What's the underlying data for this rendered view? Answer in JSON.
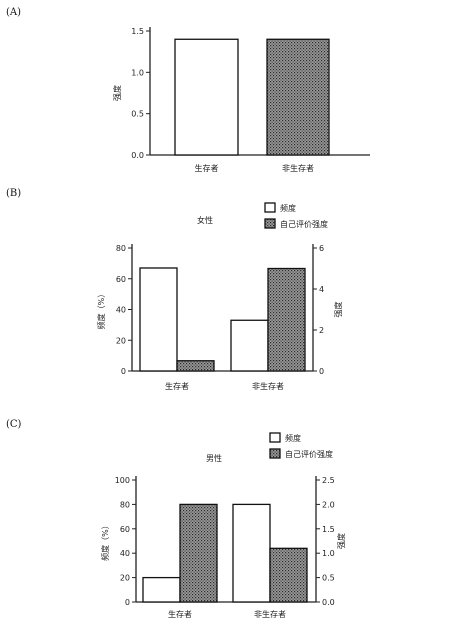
{
  "colors": {
    "axis": "#222222",
    "bar_outline": "#111111",
    "hatch_fill": "#8a8a8a",
    "background": "#ffffff"
  },
  "panel_labels": [
    "(A)",
    "(B)",
    "(C)"
  ],
  "chart_data": [
    {
      "type": "bar",
      "panel": "(A)",
      "title": "",
      "categories": [
        "生存者",
        "非生存者"
      ],
      "values": [
        1.4,
        1.4
      ],
      "bar_styles": [
        "white",
        "hatched"
      ],
      "ylabel": "强度",
      "ylim": [
        0,
        1.5
      ],
      "yticks": [
        "0.0",
        "0.5",
        "1.0",
        "1.5"
      ],
      "grid": false
    },
    {
      "type": "bar",
      "panel": "(B)",
      "title": "女性",
      "categories": [
        "生存者",
        "非生存者"
      ],
      "legend_placement": "top-right",
      "series": [
        {
          "name": "频度",
          "style": "white",
          "axis": "left",
          "values": [
            67,
            33
          ]
        },
        {
          "name": "自己评价强度",
          "style": "hatched",
          "axis": "right",
          "values": [
            0.5,
            5
          ]
        }
      ],
      "ylabel_left": "频度（%）",
      "ylim_left": [
        0,
        80
      ],
      "yticks_left": [
        "0",
        "20",
        "40",
        "60",
        "80"
      ],
      "ylabel_right": "强度",
      "ylim_right": [
        0,
        6
      ],
      "yticks_right": [
        "0",
        "2",
        "4",
        "6"
      ],
      "grid": false
    },
    {
      "type": "bar",
      "panel": "(C)",
      "title": "男性",
      "categories": [
        "生存者",
        "非生存者"
      ],
      "legend_placement": "top-right",
      "series": [
        {
          "name": "频度",
          "style": "white",
          "axis": "left",
          "values": [
            20,
            80
          ]
        },
        {
          "name": "自己评价强度",
          "style": "hatched",
          "axis": "right",
          "values": [
            2.0,
            1.1
          ]
        }
      ],
      "ylabel_left": "频度（%）",
      "ylim_left": [
        0,
        100
      ],
      "yticks_left": [
        "0",
        "20",
        "40",
        "60",
        "80",
        "100"
      ],
      "ylabel_right": "强度",
      "ylim_right": [
        0,
        2.5
      ],
      "yticks_right": [
        "0.0",
        "0.5",
        "1.0",
        "1.5",
        "2.0",
        "2.5"
      ],
      "grid": false
    }
  ]
}
